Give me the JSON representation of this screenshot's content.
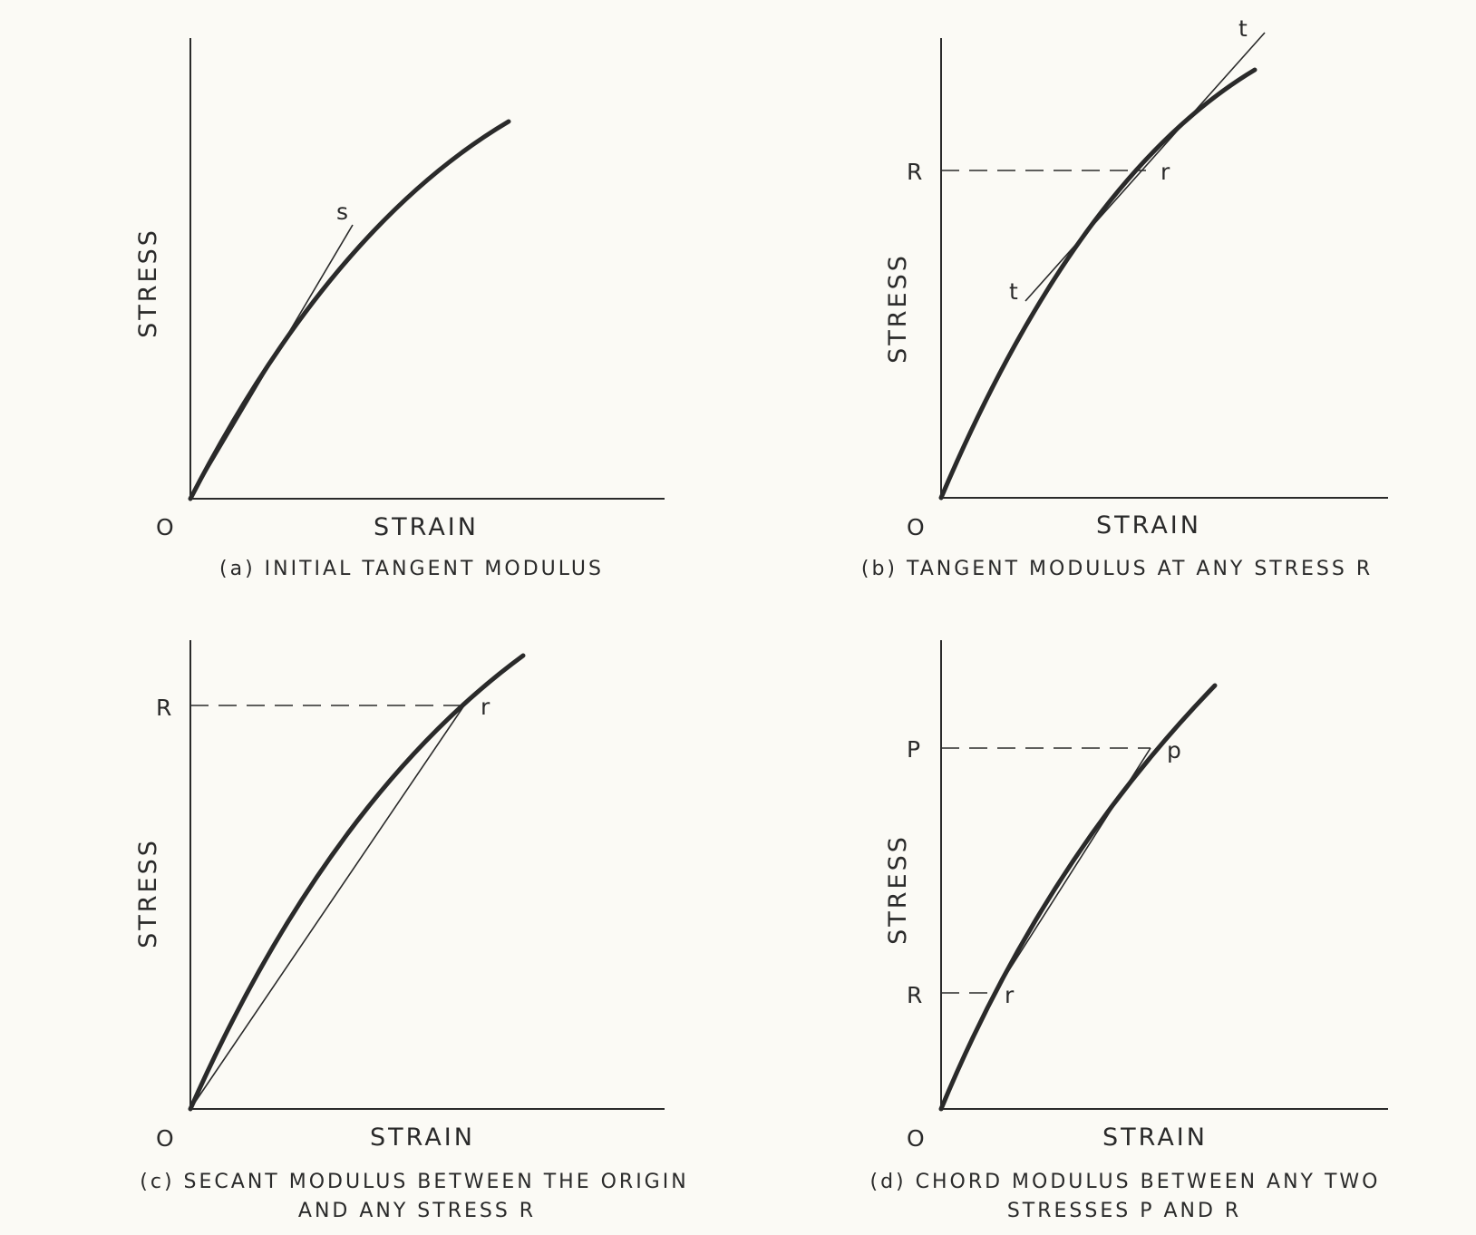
{
  "panels": [
    {
      "id": "a",
      "ylabel": "STRESS",
      "xlabel": "STRAIN",
      "origin": "O",
      "caption": [
        "(a) INITIAL TANGENT MODULUS"
      ],
      "point_labels": {
        "s": "s"
      }
    },
    {
      "id": "b",
      "ylabel": "STRESS",
      "xlabel": "STRAIN",
      "origin": "O",
      "caption": [
        "(b) TANGENT MODULUS AT ANY STRESS R"
      ],
      "point_labels": {
        "R": "R",
        "r": "r",
        "t_top": "t",
        "t_bottom": "t"
      }
    },
    {
      "id": "c",
      "ylabel": "STRESS",
      "xlabel": "STRAIN",
      "origin": "O",
      "caption": [
        "(c) SECANT MODULUS BETWEEN THE ORIGIN",
        "AND ANY STRESS R"
      ],
      "point_labels": {
        "R": "R",
        "r": "r"
      }
    },
    {
      "id": "d",
      "ylabel": "STRESS",
      "xlabel": "STRAIN",
      "origin": "O",
      "caption": [
        "(d) CHORD MODULUS BETWEEN ANY TWO",
        "STRESSES P AND R"
      ],
      "point_labels": {
        "P": "P",
        "p": "p",
        "R": "R",
        "r": "r"
      }
    }
  ]
}
